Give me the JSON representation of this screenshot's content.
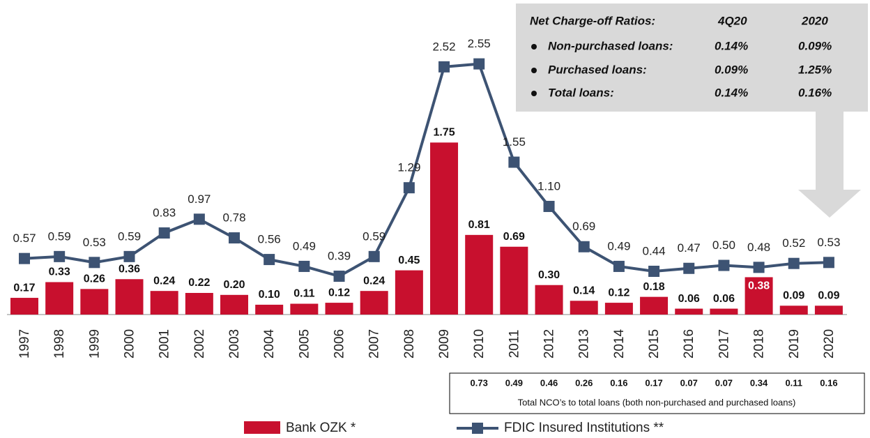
{
  "chart_data": {
    "type": "bar-line",
    "categories": [
      "1997",
      "1998",
      "1999",
      "2000",
      "2001",
      "2002",
      "2003",
      "2004",
      "2005",
      "2006",
      "2007",
      "2008",
      "2009",
      "2010",
      "2011",
      "2012",
      "2013",
      "2014",
      "2015",
      "2016",
      "2017",
      "2018",
      "2019",
      "2020"
    ],
    "ylim": [
      0,
      3.2
    ],
    "series": [
      {
        "name": "Bank OZK *",
        "type": "bar",
        "color": "#c8102e",
        "values": [
          0.17,
          0.33,
          0.26,
          0.36,
          0.24,
          0.22,
          0.2,
          0.1,
          0.11,
          0.12,
          0.24,
          0.45,
          1.75,
          0.81,
          0.69,
          0.3,
          0.14,
          0.12,
          0.18,
          0.06,
          0.06,
          0.38,
          0.09,
          0.09
        ],
        "value_labels": [
          "0.17",
          "0.33",
          "0.26",
          "0.36",
          "0.24",
          "0.22",
          "0.20",
          "0.10",
          "0.11",
          "0.12",
          "0.24",
          "0.45",
          "1.75",
          "0.81",
          "0.69",
          "0.30",
          "0.14",
          "0.12",
          "0.18",
          "0.06",
          "0.06",
          "0.38",
          "0.09",
          "0.09"
        ]
      },
      {
        "name": "FDIC Insured Institutions **",
        "type": "line",
        "color": "#3d5373",
        "values": [
          0.57,
          0.59,
          0.53,
          0.59,
          0.83,
          0.97,
          0.78,
          0.56,
          0.49,
          0.39,
          0.59,
          1.29,
          2.52,
          2.55,
          1.55,
          1.1,
          0.69,
          0.49,
          0.44,
          0.47,
          0.5,
          0.48,
          0.52,
          0.53
        ],
        "value_labels": [
          "0.57",
          "0.59",
          "0.53",
          "0.59",
          "0.83",
          "0.97",
          "0.78",
          "0.56",
          "0.49",
          "0.39",
          "0.59",
          "1.29",
          "2.52",
          "2.55",
          "1.55",
          "1.10",
          "0.69",
          "0.49",
          "0.44",
          "0.47",
          "0.50",
          "0.48",
          "0.52",
          "0.53"
        ]
      }
    ],
    "inset": {
      "header": [
        "Net Charge-off Ratios:",
        "4Q20",
        "2020"
      ],
      "rows": [
        [
          "Non-purchased loans:",
          "0.14%",
          "0.09%"
        ],
        [
          "Purchased loans:",
          "0.09%",
          "1.25%"
        ],
        [
          "Total loans:",
          "0.14%",
          "0.16%"
        ]
      ]
    },
    "total_nco": {
      "values": [
        0.73,
        0.49,
        0.46,
        0.26,
        0.16,
        0.17,
        0.07,
        0.07,
        0.34,
        0.11,
        0.16
      ],
      "caption": "Total NCO’s to total loans (both non-purchased and purchased loans)"
    }
  }
}
